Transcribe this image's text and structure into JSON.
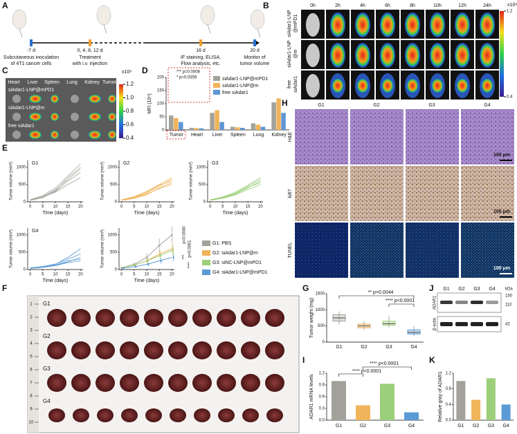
{
  "panels": {
    "A": {
      "label": "A",
      "events": [
        {
          "day": "-7 d",
          "caption": [
            "Subcutaneous inoculation",
            "of 4T1 cancer cells"
          ]
        },
        {
          "day": "0, 4, 8, 12 d",
          "caption": [
            "Treatment",
            "with i.v. injection"
          ]
        },
        {
          "day": "16 d",
          "caption": [
            "IF staining, ELISA,",
            "Flow analysis, etc."
          ]
        },
        {
          "day": "20 d",
          "caption": [
            "Monitor of",
            "tumor volume"
          ]
        }
      ]
    },
    "B": {
      "label": "B",
      "times": [
        "0h",
        "2h",
        "4h",
        "6h",
        "8h",
        "10h",
        "12h",
        "24h"
      ],
      "rows": [
        [
          "siAdar1-LNP",
          "@mPD1"
        ],
        [
          "siAdar1-LNP",
          "@m"
        ],
        [
          "free",
          "siAdar1"
        ]
      ],
      "colorbar": {
        "unit": "x10⁸",
        "lim": [
          0.4,
          1.2
        ],
        "ticks": [
          1.2,
          0.4
        ]
      }
    },
    "C": {
      "label": "C",
      "organs": [
        "Heart",
        "Liver",
        "Spleen",
        "Lung",
        "Kidney",
        "Tumor"
      ],
      "rows": [
        "siAdar1-LNP@mPD1",
        "siAdar1-LNP@m",
        "free siAdar1"
      ],
      "colorbar": {
        "unit": "x10⁸",
        "lim": [
          0.4,
          1.2
        ],
        "ticks": [
          1.2,
          {
            "value": 1,
            "label": "1.0"
          },
          0.8,
          0.6,
          0.4
        ]
      }
    },
    "D": {
      "label": "D",
      "type": "bar",
      "ylabel": "MFI (10⁴)",
      "categories": [
        "Tumor",
        "Heart",
        "Liver",
        "Spleen",
        "Lung",
        "Kidney"
      ],
      "series": [
        {
          "name": "siAdar1-LNP@mPD1",
          "color": "#a3a29a",
          "values": [
            55,
            8,
            65,
            12,
            25,
            105
          ]
        },
        {
          "name": "siAdar1-LNP@m",
          "color": "#f0b45a",
          "values": [
            45,
            7,
            75,
            10,
            20,
            120
          ]
        },
        {
          "name": "free siAdar1",
          "color": "#5f95d4",
          "values": [
            30,
            6,
            30,
            8,
            12,
            65
          ]
        }
      ],
      "ylim": [
        0,
        200
      ],
      "yticks": [
        0,
        50,
        100,
        150,
        200
      ],
      "annotations": [
        "*** p=0.0008",
        "* p=0.0359"
      ]
    },
    "E": {
      "label": "E",
      "type": "line",
      "xlabel": "Time (days)",
      "ylabel": "Tumor volume (mm³)",
      "x": [
        0,
        5,
        10,
        15,
        20
      ],
      "xlim": [
        -1,
        21
      ],
      "xticks": [
        0,
        5,
        10,
        15,
        20
      ],
      "ylim": [
        0,
        1200
      ],
      "yticks": [
        0,
        500,
        1000
      ],
      "groups": [
        {
          "name": "G1",
          "curves": [
            [
              50,
              150,
              350,
              650,
              950
            ],
            [
              40,
              120,
              300,
              600,
              850
            ],
            [
              60,
              180,
              400,
              750,
              1100
            ],
            [
              50,
              140,
              280,
              500,
              700
            ],
            [
              45,
              130,
              320,
              700,
              1000
            ]
          ]
        },
        {
          "name": "G2",
          "curves": [
            [
              50,
              120,
              250,
              450,
              650
            ],
            [
              40,
              100,
              200,
              400,
              550
            ],
            [
              60,
              150,
              300,
              500,
              700
            ],
            [
              45,
              110,
              220,
              380,
              500
            ],
            [
              55,
              130,
              280,
              480,
              600
            ]
          ]
        },
        {
          "name": "G3",
          "curves": [
            [
              50,
              110,
              220,
              400,
              600
            ],
            [
              40,
              100,
              200,
              350,
              500
            ],
            [
              60,
              140,
              280,
              480,
              700
            ],
            [
              45,
              120,
              230,
              420,
              550
            ],
            [
              50,
              130,
              250,
              450,
              650
            ]
          ]
        },
        {
          "name": "G4",
          "curves": [
            [
              40,
              70,
              130,
              250,
              300
            ],
            [
              30,
              60,
              110,
              200,
              250
            ],
            [
              50,
              90,
              160,
              300,
              450
            ],
            [
              35,
              65,
              120,
              220,
              350
            ],
            [
              45,
              80,
              150,
              350,
              600
            ]
          ]
        }
      ],
      "series": [
        {
          "name": "G1: PBS",
          "color": "#a3a29a",
          "values": [
            50,
            150,
            350,
            700,
            1000
          ],
          "errors": [
            20,
            60,
            120,
            200,
            250
          ]
        },
        {
          "name": "G2: siAdar1-LNP@m",
          "color": "#f0b45a",
          "values": [
            50,
            130,
            250,
            450,
            600
          ],
          "errors": [
            15,
            40,
            80,
            120,
            150
          ]
        },
        {
          "name": "G3: siNC-LNP@mPD1",
          "color": "#9ccf7a",
          "values": [
            50,
            130,
            250,
            400,
            550
          ],
          "errors": [
            15,
            40,
            80,
            110,
            140
          ]
        },
        {
          "name": "G4: siAdar1-LNP@mPD1",
          "color": "#5b9bd5",
          "values": [
            40,
            80,
            150,
            250,
            350
          ],
          "errors": [
            10,
            25,
            50,
            80,
            110
          ]
        }
      ],
      "annotations": [
        "p=0.0040",
        "p<0.0001",
        "***",
        "****"
      ]
    },
    "F": {
      "label": "F",
      "groups": [
        "G1",
        "G2",
        "G3",
        "G4"
      ],
      "ruler": [
        1,
        2,
        3,
        4,
        5,
        6,
        7,
        8,
        9,
        10
      ]
    },
    "G": {
      "label": "G",
      "type": "box",
      "ylabel": "Tumor weight (mg)",
      "categories": [
        "G1",
        "G2",
        "G3",
        "G4"
      ],
      "colors": [
        "#a3a29a",
        "#f0b45a",
        "#9ccf7a",
        "#5b9bd5"
      ],
      "boxes": [
        {
          "min": 550,
          "q1": 650,
          "median": 750,
          "q3": 850,
          "max": 950
        },
        {
          "min": 380,
          "q1": 440,
          "median": 500,
          "q3": 560,
          "max": 650
        },
        {
          "min": 450,
          "q1": 520,
          "median": 570,
          "q3": 650,
          "max": 800
        },
        {
          "min": 180,
          "q1": 250,
          "median": 300,
          "q3": 380,
          "max": 500
        }
      ],
      "ylim": [
        0,
        1500
      ],
      "yticks": [
        0,
        500,
        1000,
        1500
      ],
      "annotations": [
        "** p=0.0044",
        "**** p<0.0001"
      ]
    },
    "H": {
      "label": "H",
      "columns": [
        "G1",
        "G2",
        "G3",
        "G4"
      ],
      "rows": [
        "H&E",
        "ki67",
        "TUNEL"
      ],
      "scale": "100 μm"
    },
    "I": {
      "label": "I",
      "type": "bar",
      "ylabel": "ADAR1 mRNA levels",
      "categories": [
        "G1",
        "G2",
        "G3",
        "G4"
      ],
      "colors": [
        "#a3a29a",
        "#f0b45a",
        "#9ccf7a",
        "#5b9bd5"
      ],
      "values": [
        1.0,
        0.38,
        0.93,
        0.2
      ],
      "ylim": [
        0,
        1.2
      ],
      "yticks": [
        {
          "value": 0,
          "label": "0.0"
        },
        0.3,
        0.6,
        0.9,
        1.2
      ],
      "annotations": [
        "**** p<0.0001",
        "**** p<0.0001"
      ]
    },
    "J": {
      "label": "J",
      "lanes": [
        "G1",
        "G2",
        "G3",
        "G4"
      ],
      "proteins": [
        "ADAR1",
        "β-actin"
      ],
      "unit": "kDa",
      "markers": [
        150,
        110,
        42
      ]
    },
    "K": {
      "label": "K",
      "type": "bar",
      "ylabel": "Relative gray of ADAR1",
      "categories": [
        "G1",
        "G2",
        "G3",
        "G4"
      ],
      "colors": [
        "#a3a29a",
        "#f0b45a",
        "#9ccf7a",
        "#5b9bd5"
      ],
      "values": [
        1.0,
        0.52,
        1.07,
        0.4
      ],
      "ylim": [
        0,
        1.2
      ],
      "yticks": [
        {
          "value": 0,
          "label": "0.0"
        },
        0.4,
        0.8,
        1.2
      ]
    }
  }
}
